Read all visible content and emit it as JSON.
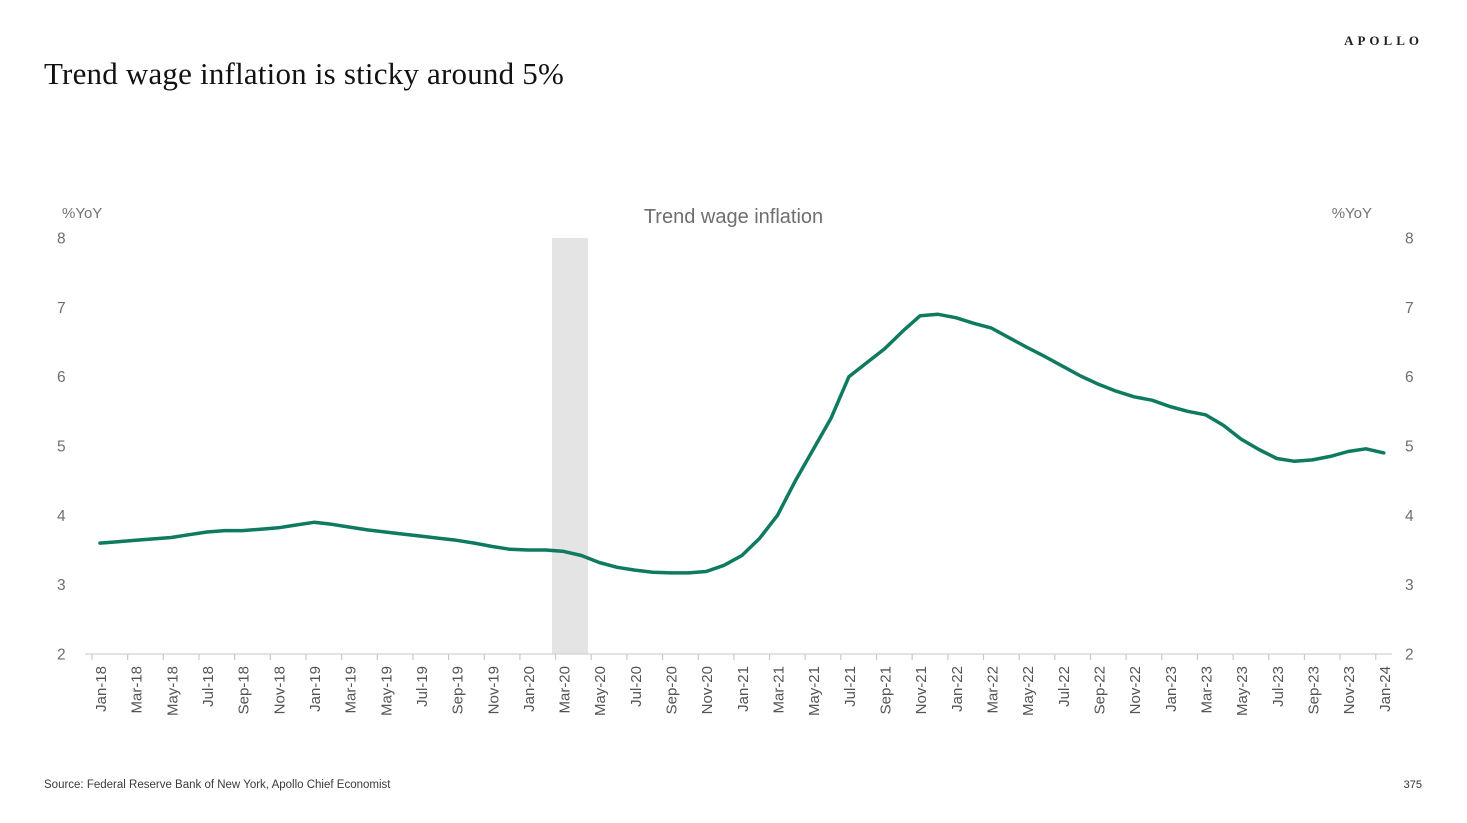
{
  "page": {
    "title": "Trend wage inflation is sticky around 5%",
    "brand": "APOLLO",
    "source": "Source: Federal Reserve Bank of New York, Apollo Chief Economist",
    "page_number": "375"
  },
  "chart_data": {
    "type": "line",
    "title": "Trend wage inflation",
    "left_axis_unit": "%YoY",
    "right_axis_unit": "%YoY",
    "ylim": [
      2,
      8
    ],
    "yticks": [
      8,
      7,
      6,
      5,
      4,
      3,
      2
    ],
    "grid": false,
    "legend_position": "top-center",
    "x_months_per_tick": 2,
    "x_tick_labels": [
      "Jan-18",
      "Mar-18",
      "May-18",
      "Jul-18",
      "Sep-18",
      "Nov-18",
      "Jan-19",
      "Mar-19",
      "May-19",
      "Jul-19",
      "Sep-19",
      "Nov-19",
      "Jan-20",
      "Mar-20",
      "May-20",
      "Jul-20",
      "Sep-20",
      "Nov-20",
      "Jan-21",
      "Mar-21",
      "May-21",
      "Jul-21",
      "Sep-21",
      "Nov-21",
      "Jan-22",
      "Mar-22",
      "May-22",
      "Jul-22",
      "Sep-22",
      "Nov-22",
      "Jan-23",
      "Mar-23",
      "May-23",
      "Jul-23",
      "Sep-23",
      "Nov-23",
      "Jan-24"
    ],
    "series": [
      {
        "name": "Trend wage inflation",
        "color": "#0e7b61",
        "start_month": "Jan-18",
        "end_month": "Jan-24",
        "values": [
          3.6,
          3.62,
          3.64,
          3.66,
          3.68,
          3.72,
          3.76,
          3.78,
          3.78,
          3.8,
          3.82,
          3.86,
          3.9,
          3.87,
          3.83,
          3.79,
          3.76,
          3.73,
          3.7,
          3.67,
          3.64,
          3.6,
          3.55,
          3.51,
          3.5,
          3.5,
          3.48,
          3.42,
          3.32,
          3.25,
          3.21,
          3.18,
          3.17,
          3.17,
          3.19,
          3.28,
          3.42,
          3.67,
          4.0,
          4.5,
          4.95,
          5.4,
          6.0,
          6.2,
          6.4,
          6.65,
          6.88,
          6.9,
          6.85,
          6.77,
          6.7,
          6.56,
          6.42,
          6.29,
          6.15,
          6.01,
          5.89,
          5.79,
          5.71,
          5.66,
          5.57,
          5.5,
          5.45,
          5.3,
          5.1,
          4.95,
          4.82,
          4.78,
          4.8,
          4.85,
          4.92,
          4.96,
          4.9
        ]
      }
    ],
    "recession_band": {
      "label": "Mar-20 recession shading",
      "from_month_index": 25.35,
      "to_month_index": 27.37,
      "color": "#e4e4e4"
    },
    "colors": {
      "axis_line": "#d2d2d2",
      "tick_mark": "#c9c9c9",
      "tick_label": "#545454",
      "axis_value": "#6e6e6e"
    }
  }
}
